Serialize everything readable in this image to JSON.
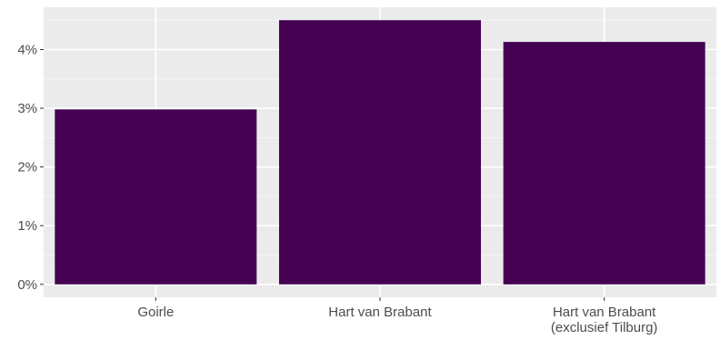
{
  "chart_data": {
    "type": "bar",
    "categories": [
      [
        "Goirle"
      ],
      [
        "Hart van Brabant"
      ],
      [
        "Hart van Brabant",
        "(exclusief Tilburg)"
      ]
    ],
    "values": [
      0.0298,
      0.045,
      0.0413
    ],
    "yticks": [
      0,
      0.01,
      0.02,
      0.03,
      0.04
    ],
    "ytick_labels": [
      "0%",
      "1%",
      "2%",
      "3%",
      "4%"
    ],
    "ylim": [
      -0.0022,
      0.0472
    ],
    "grid": true,
    "colors": {
      "bar": "#440154",
      "panel": "#ebebeb",
      "grid_major": "#ffffff",
      "grid_minor": "#f5f5f5",
      "text": "#4d4d4d",
      "tick": "#333333"
    }
  }
}
